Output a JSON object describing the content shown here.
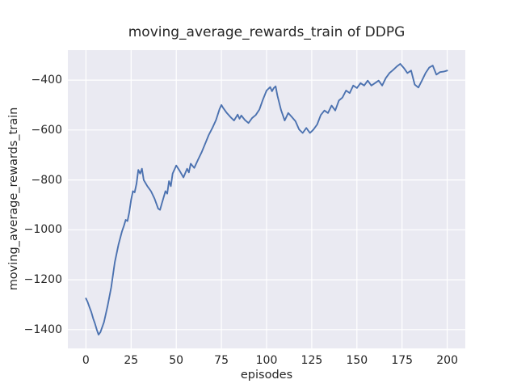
{
  "chart_data": {
    "type": "line",
    "title": "moving_average_rewards_train of DDPG",
    "xlabel": "episodes",
    "ylabel": "moving_average_rewards_train",
    "xlim": [
      -10,
      210
    ],
    "ylim": [
      -1475,
      -280
    ],
    "xticks": [
      0,
      25,
      50,
      75,
      100,
      125,
      150,
      175,
      200
    ],
    "xtick_labels": [
      "0",
      "25",
      "50",
      "75",
      "100",
      "125",
      "150",
      "175",
      "200"
    ],
    "yticks": [
      -1400,
      -1200,
      -1000,
      -800,
      -600,
      -400
    ],
    "ytick_labels": [
      "−1400",
      "−1200",
      "−1000",
      "−800",
      "−600",
      "−400"
    ],
    "grid": true,
    "legend": null,
    "style": {
      "line_color": "#4c72b0",
      "line_width": 1.9,
      "plot_background": "#eaeaf2",
      "grid_color": "#ffffff",
      "text_color": "#262626"
    },
    "series": [
      {
        "name": "moving_average_rewards_train",
        "points": [
          [
            0,
            -1275
          ],
          [
            1,
            -1290
          ],
          [
            2,
            -1310
          ],
          [
            3,
            -1330
          ],
          [
            4,
            -1355
          ],
          [
            5,
            -1375
          ],
          [
            6,
            -1400
          ],
          [
            7,
            -1420
          ],
          [
            8,
            -1410
          ],
          [
            10,
            -1370
          ],
          [
            12,
            -1305
          ],
          [
            14,
            -1230
          ],
          [
            16,
            -1130
          ],
          [
            18,
            -1060
          ],
          [
            20,
            -1005
          ],
          [
            21,
            -985
          ],
          [
            22,
            -960
          ],
          [
            23,
            -965
          ],
          [
            24,
            -930
          ],
          [
            25,
            -880
          ],
          [
            26,
            -845
          ],
          [
            27,
            -850
          ],
          [
            28,
            -815
          ],
          [
            29,
            -760
          ],
          [
            30,
            -775
          ],
          [
            31,
            -755
          ],
          [
            32,
            -800
          ],
          [
            34,
            -825
          ],
          [
            36,
            -845
          ],
          [
            38,
            -875
          ],
          [
            40,
            -915
          ],
          [
            41,
            -920
          ],
          [
            42,
            -895
          ],
          [
            44,
            -845
          ],
          [
            45,
            -855
          ],
          [
            46,
            -805
          ],
          [
            47,
            -825
          ],
          [
            48,
            -775
          ],
          [
            50,
            -742
          ],
          [
            52,
            -765
          ],
          [
            54,
            -790
          ],
          [
            56,
            -755
          ],
          [
            57,
            -770
          ],
          [
            58,
            -735
          ],
          [
            60,
            -752
          ],
          [
            62,
            -720
          ],
          [
            64,
            -690
          ],
          [
            66,
            -655
          ],
          [
            68,
            -620
          ],
          [
            70,
            -592
          ],
          [
            72,
            -560
          ],
          [
            74,
            -515
          ],
          [
            75,
            -500
          ],
          [
            76,
            -512
          ],
          [
            78,
            -532
          ],
          [
            80,
            -548
          ],
          [
            82,
            -562
          ],
          [
            84,
            -538
          ],
          [
            85,
            -555
          ],
          [
            86,
            -542
          ],
          [
            88,
            -560
          ],
          [
            90,
            -572
          ],
          [
            92,
            -552
          ],
          [
            94,
            -540
          ],
          [
            96,
            -518
          ],
          [
            98,
            -478
          ],
          [
            100,
            -442
          ],
          [
            102,
            -428
          ],
          [
            103,
            -445
          ],
          [
            104,
            -432
          ],
          [
            105,
            -425
          ],
          [
            106,
            -462
          ],
          [
            108,
            -520
          ],
          [
            110,
            -562
          ],
          [
            112,
            -532
          ],
          [
            114,
            -548
          ],
          [
            116,
            -565
          ],
          [
            118,
            -598
          ],
          [
            120,
            -612
          ],
          [
            122,
            -592
          ],
          [
            124,
            -612
          ],
          [
            125,
            -605
          ],
          [
            126,
            -598
          ],
          [
            128,
            -578
          ],
          [
            130,
            -540
          ],
          [
            132,
            -522
          ],
          [
            134,
            -532
          ],
          [
            136,
            -502
          ],
          [
            138,
            -522
          ],
          [
            140,
            -482
          ],
          [
            142,
            -470
          ],
          [
            144,
            -442
          ],
          [
            146,
            -452
          ],
          [
            148,
            -422
          ],
          [
            150,
            -432
          ],
          [
            152,
            -412
          ],
          [
            154,
            -422
          ],
          [
            156,
            -402
          ],
          [
            158,
            -422
          ],
          [
            160,
            -412
          ],
          [
            162,
            -402
          ],
          [
            164,
            -422
          ],
          [
            166,
            -392
          ],
          [
            168,
            -372
          ],
          [
            170,
            -360
          ],
          [
            172,
            -346
          ],
          [
            174,
            -335
          ],
          [
            176,
            -352
          ],
          [
            178,
            -372
          ],
          [
            180,
            -362
          ],
          [
            182,
            -418
          ],
          [
            184,
            -430
          ],
          [
            186,
            -402
          ],
          [
            188,
            -372
          ],
          [
            190,
            -350
          ],
          [
            192,
            -342
          ],
          [
            194,
            -378
          ],
          [
            196,
            -368
          ],
          [
            198,
            -366
          ],
          [
            200,
            -362
          ]
        ]
      }
    ]
  }
}
